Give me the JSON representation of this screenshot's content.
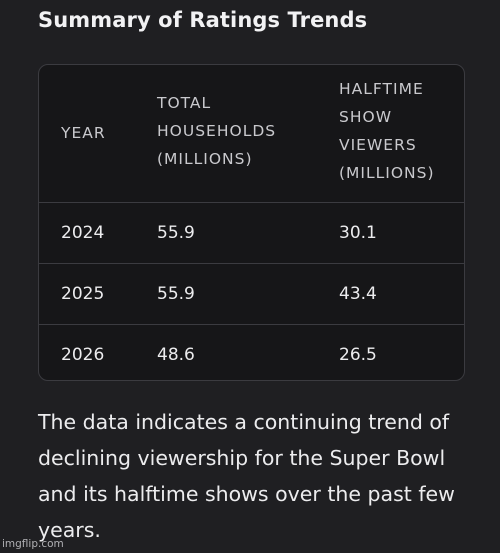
{
  "heading": "Summary of Ratings Trends",
  "table": {
    "headers": {
      "year": [
        "YEAR"
      ],
      "total": [
        "TOTAL",
        "HOUSEHOLDS",
        "(MILLIONS)"
      ],
      "halftime": [
        "HALFTIME",
        "SHOW",
        "VIEWERS",
        "(MILLIONS)"
      ]
    },
    "rows": [
      {
        "year": "2024",
        "total": "55.9",
        "halftime": "30.1"
      },
      {
        "year": "2025",
        "total": "55.9",
        "halftime": "43.4"
      },
      {
        "year": "2026",
        "total": "48.6",
        "halftime": "26.5"
      }
    ]
  },
  "summary": "The data indicates a continuing trend of declining viewership for the Super Bowl and its halftime shows over the past few years.",
  "watermark": "imgflip.com"
}
